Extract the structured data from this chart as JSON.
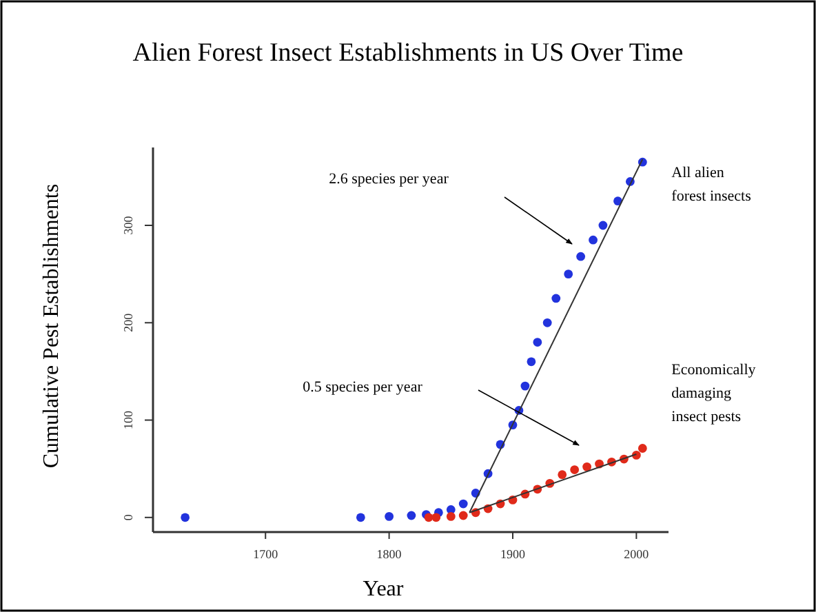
{
  "chart_data": {
    "type": "scatter",
    "title": "Alien Forest Insect Establishments in US Over Time",
    "xlabel": "Year",
    "ylabel": "Cumulative Pest Establishments",
    "xlim": [
      1609,
      2026
    ],
    "xticks": [
      1700,
      1800,
      1900,
      2000
    ],
    "ylim": [
      -15,
      380
    ],
    "yticks": [
      0,
      100,
      200,
      300
    ],
    "grid": false,
    "marker": "circle",
    "series": [
      {
        "name": "All alien\nforest insects",
        "color": "#2233dd",
        "x": [
          1635,
          1777,
          1800,
          1818,
          1830,
          1840,
          1850,
          1860,
          1870,
          1880,
          1890,
          1900,
          1905,
          1910,
          1915,
          1920,
          1928,
          1935,
          1945,
          1955,
          1965,
          1973,
          1985,
          1995,
          2005
        ],
        "values": [
          0,
          0,
          1,
          2,
          3,
          5,
          8,
          14,
          25,
          45,
          75,
          95,
          110,
          135,
          160,
          180,
          200,
          225,
          250,
          268,
          285,
          300,
          325,
          345,
          365
        ]
      },
      {
        "name": "Economically\ndamaging\ninsect pests",
        "color": "#e02a1a",
        "x": [
          1832,
          1838,
          1850,
          1860,
          1870,
          1880,
          1890,
          1900,
          1910,
          1920,
          1930,
          1940,
          1950,
          1960,
          1970,
          1980,
          1990,
          2000,
          2005
        ],
        "values": [
          0,
          0,
          1,
          2,
          5,
          9,
          14,
          18,
          24,
          29,
          35,
          44,
          49,
          52,
          55,
          57,
          60,
          64,
          71
        ]
      },
      {
        "type": "line",
        "marker": "none",
        "color": "#333333",
        "x": [
          1865,
          2005
        ],
        "values": [
          5,
          368
        ]
      },
      {
        "type": "line",
        "marker": "none",
        "color": "#333333",
        "x": [
          1865,
          2000
        ],
        "values": [
          5,
          65
        ]
      }
    ],
    "annotations": [
      "2.6 species per year",
      "0.5 species per year"
    ]
  }
}
